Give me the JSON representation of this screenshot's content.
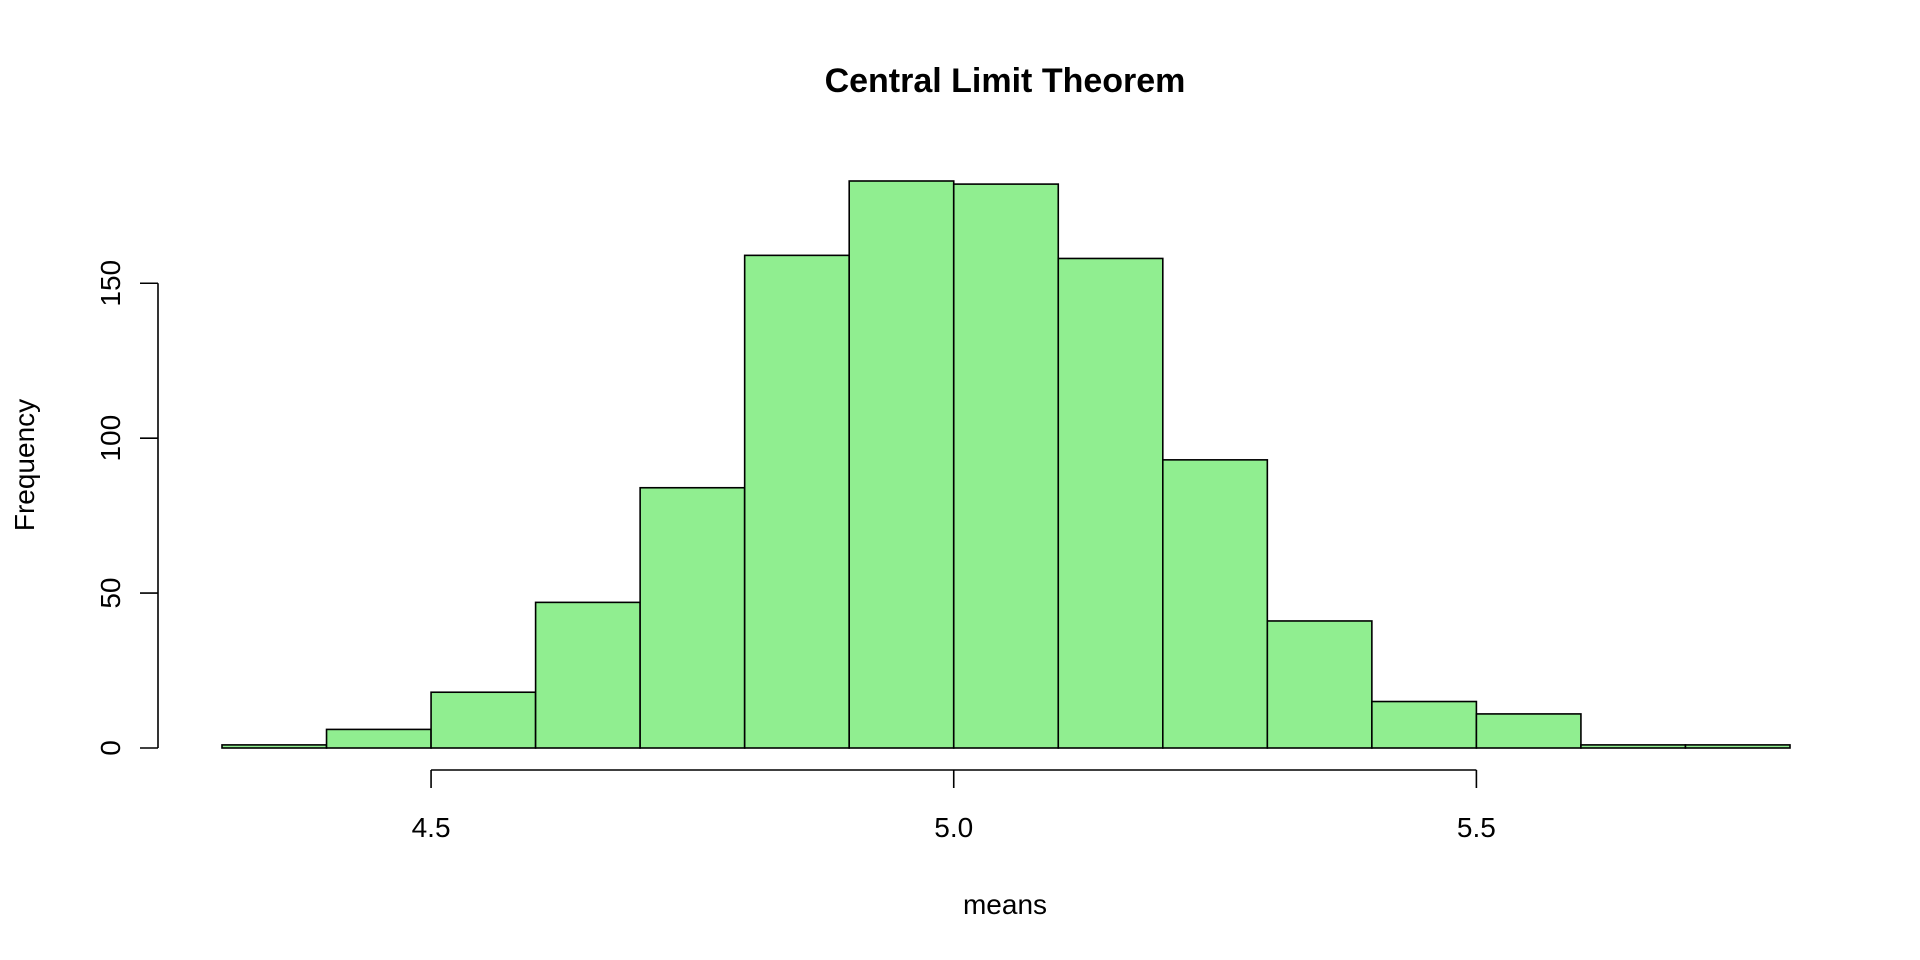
{
  "chart_data": {
    "type": "bar",
    "title": "Central Limit Theorem",
    "xlabel": "means",
    "ylabel": "Frequency",
    "bin_edges": [
      4.3,
      4.4,
      4.5,
      4.6,
      4.7,
      4.8,
      4.9,
      5.0,
      5.1,
      5.2,
      5.3,
      5.4,
      5.5,
      5.6,
      5.7,
      5.8
    ],
    "values": [
      1,
      6,
      18,
      47,
      84,
      159,
      183,
      182,
      158,
      93,
      41,
      15,
      11,
      1,
      1
    ],
    "bar_color": "#90EE90",
    "xlim": [
      4.3,
      5.8
    ],
    "ylim": [
      0,
      183
    ],
    "x_ticks": [
      4.5,
      5.0,
      5.5
    ],
    "x_tick_labels": [
      "4.5",
      "5.0",
      "5.5"
    ],
    "y_ticks": [
      0,
      50,
      100,
      150
    ],
    "y_tick_labels": [
      "0",
      "50",
      "100",
      "150"
    ],
    "grid": false,
    "legend": "none"
  }
}
